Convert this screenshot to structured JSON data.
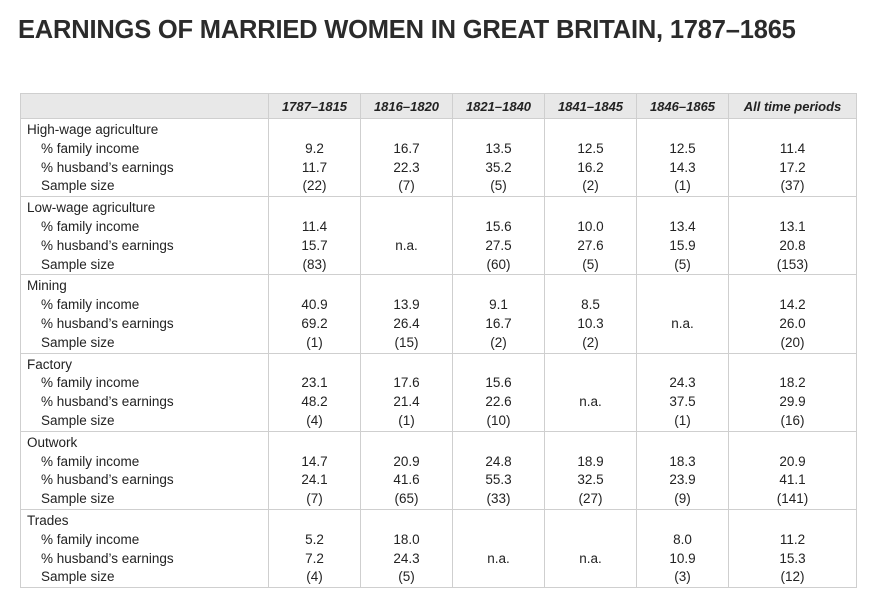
{
  "title": "EARNINGS OF MARRIED WOMEN IN GREAT BRITAIN, 1787–1865",
  "columns": [
    "",
    "1787–1815",
    "1816–1820",
    "1821–1840",
    "1841–1845",
    "1846–1865",
    "All time periods"
  ],
  "row_labels": [
    "% family income",
    "% husband’s earnings",
    "Sample size"
  ],
  "groups": [
    {
      "category": "High-wage agriculture",
      "cells": [
        [
          "9.2",
          "11.7",
          "(22)"
        ],
        [
          "16.7",
          "22.3",
          "(7)"
        ],
        [
          "13.5",
          "35.2",
          "(5)"
        ],
        [
          "12.5",
          "16.2",
          "(2)"
        ],
        [
          "12.5",
          "14.3",
          "(1)"
        ],
        [
          "11.4",
          "17.2",
          "(37)"
        ]
      ]
    },
    {
      "category": "Low-wage agriculture",
      "cells": [
        [
          "11.4",
          "15.7",
          "(83)"
        ],
        [
          "",
          "n.a.",
          ""
        ],
        [
          "15.6",
          "27.5",
          "(60)"
        ],
        [
          "10.0",
          "27.6",
          "(5)"
        ],
        [
          "13.4",
          "15.9",
          "(5)"
        ],
        [
          "13.1",
          "20.8",
          "(153)"
        ]
      ]
    },
    {
      "category": "Mining",
      "cells": [
        [
          "40.9",
          "69.2",
          "(1)"
        ],
        [
          "13.9",
          "26.4",
          "(15)"
        ],
        [
          "9.1",
          "16.7",
          "(2)"
        ],
        [
          "8.5",
          "10.3",
          "(2)"
        ],
        [
          "",
          "n.a.",
          ""
        ],
        [
          "14.2",
          "26.0",
          "(20)"
        ]
      ]
    },
    {
      "category": "Factory",
      "cells": [
        [
          "23.1",
          "48.2",
          "(4)"
        ],
        [
          "17.6",
          "21.4",
          "(1)"
        ],
        [
          "15.6",
          "22.6",
          "(10)"
        ],
        [
          "",
          "n.a.",
          ""
        ],
        [
          "24.3",
          "37.5",
          "(1)"
        ],
        [
          "18.2",
          "29.9",
          "(16)"
        ]
      ]
    },
    {
      "category": "Outwork",
      "cells": [
        [
          "14.7",
          "24.1",
          "(7)"
        ],
        [
          "20.9",
          "41.6",
          "(65)"
        ],
        [
          "24.8",
          "55.3",
          "(33)"
        ],
        [
          "18.9",
          "32.5",
          "(27)"
        ],
        [
          "18.3",
          "23.9",
          "(9)"
        ],
        [
          "20.9",
          "41.1",
          "(141)"
        ]
      ]
    },
    {
      "category": "Trades",
      "cells": [
        [
          "5.2",
          "7.2",
          "(4)"
        ],
        [
          "18.0",
          "24.3",
          "(5)"
        ],
        [
          "",
          "n.a.",
          ""
        ],
        [
          "",
          "n.a.",
          ""
        ],
        [
          "8.0",
          "10.9",
          "(3)"
        ],
        [
          "11.2",
          "15.3",
          "(12)"
        ]
      ]
    }
  ]
}
